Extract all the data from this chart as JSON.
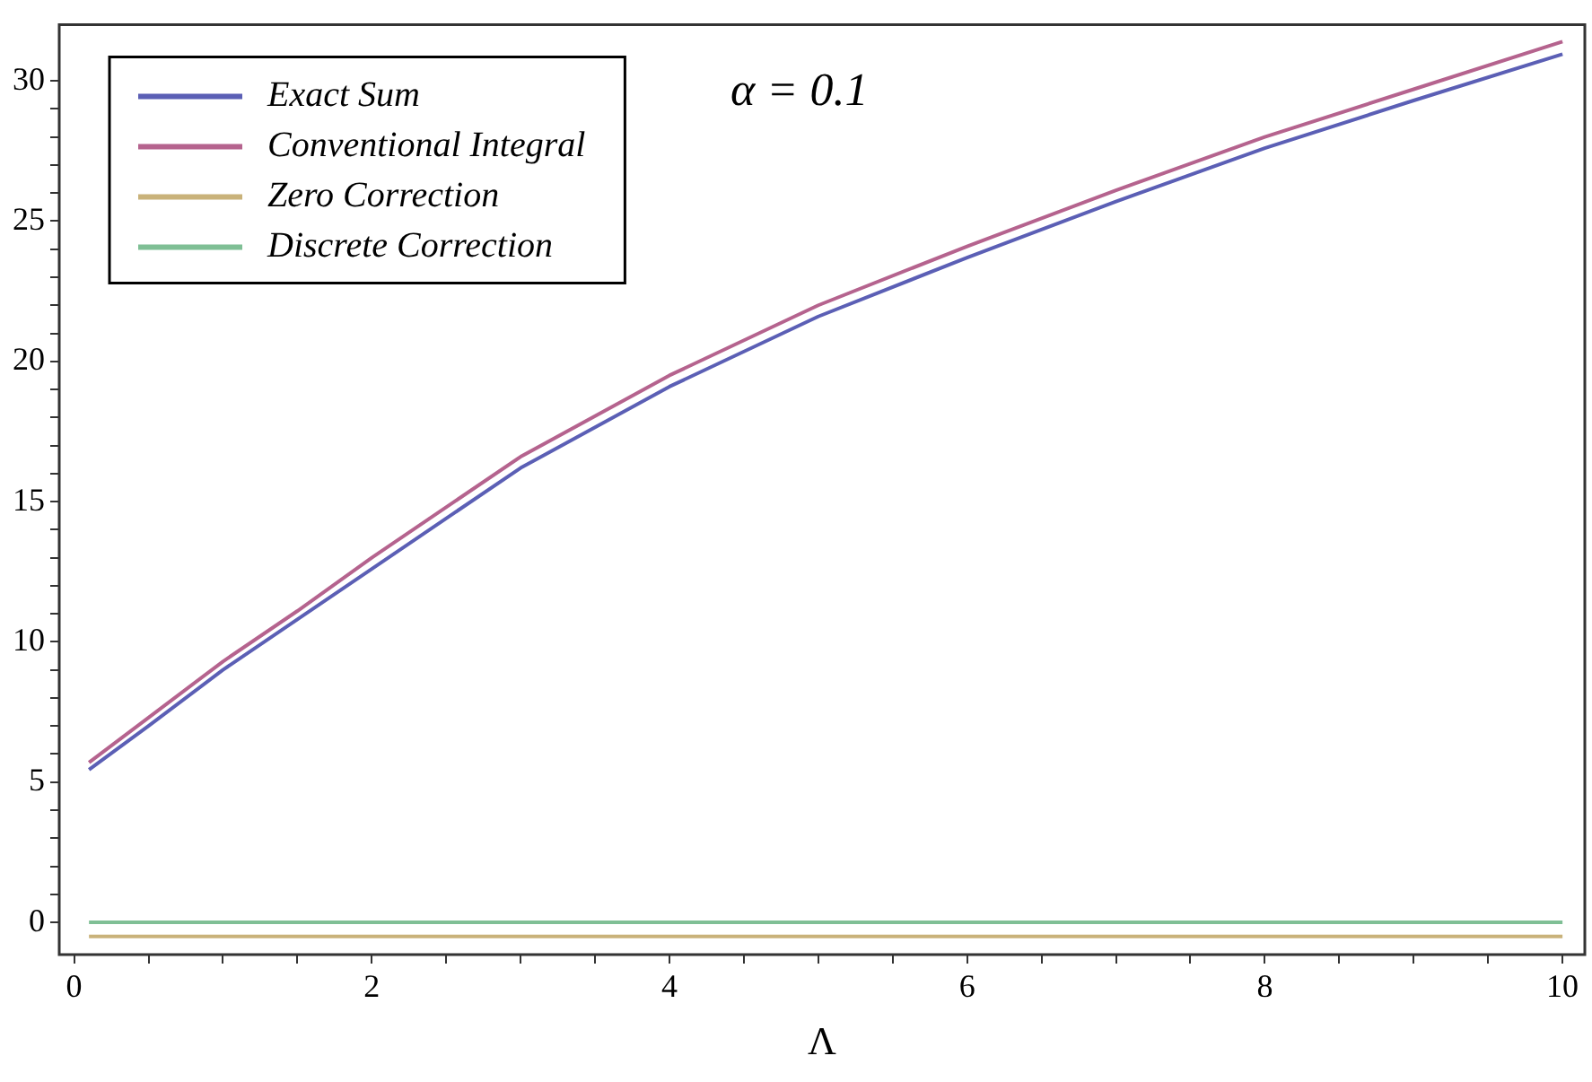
{
  "chart_data": {
    "type": "line",
    "xlabel": "Λ",
    "annotations": [
      {
        "text": "α = 0.1"
      }
    ],
    "x": [
      0.1,
      0.5,
      1,
      1.5,
      2,
      3,
      4,
      5,
      6,
      7,
      8,
      9,
      10
    ],
    "series": [
      {
        "name": "Exact Sum",
        "color": "#5b5fb5",
        "values": [
          5.44,
          7.0,
          9.0,
          10.8,
          12.6,
          16.2,
          19.1,
          21.6,
          23.7,
          25.7,
          27.6,
          29.3,
          30.95
        ]
      },
      {
        "name": "Conventional Integral",
        "color": "#b5638e",
        "values": [
          5.7,
          7.3,
          9.3,
          11.1,
          13.0,
          16.6,
          19.5,
          22.0,
          24.1,
          26.1,
          28.0,
          29.7,
          31.4
        ]
      },
      {
        "name": "Zero Correction",
        "color": "#c9b27a",
        "values": [
          -0.5,
          -0.5,
          -0.5,
          -0.5,
          -0.5,
          -0.5,
          -0.5,
          -0.5,
          -0.5,
          -0.5,
          -0.5,
          -0.5,
          -0.5
        ]
      },
      {
        "name": "Discrete Correction",
        "color": "#7fbf95",
        "values": [
          0,
          0,
          0,
          0,
          0,
          0,
          0,
          0,
          0,
          0,
          0,
          0,
          0
        ]
      }
    ],
    "xlim": [
      -0.1,
      10.15
    ],
    "ylim": [
      -1.15,
      32
    ],
    "xticks": [
      0,
      {
        "value": 0.5,
        "label": null
      },
      {
        "value": 1,
        "label": null
      },
      {
        "value": 1.5,
        "label": null
      },
      2,
      {
        "value": 2.5,
        "label": null
      },
      {
        "value": 3,
        "label": null
      },
      {
        "value": 3.5,
        "label": null
      },
      4,
      {
        "value": 4.5,
        "label": null
      },
      {
        "value": 5,
        "label": null
      },
      {
        "value": 5.5,
        "label": null
      },
      6,
      {
        "value": 6.5,
        "label": null
      },
      {
        "value": 7,
        "label": null
      },
      {
        "value": 7.5,
        "label": null
      },
      8,
      {
        "value": 8.5,
        "label": null
      },
      {
        "value": 9,
        "label": null
      },
      {
        "value": 9.5,
        "label": null
      },
      10
    ],
    "yticks": [
      0,
      {
        "value": 1,
        "label": null
      },
      {
        "value": 2,
        "label": null
      },
      {
        "value": 3,
        "label": null
      },
      {
        "value": 4,
        "label": null
      },
      5,
      {
        "value": 6,
        "label": null
      },
      {
        "value": 7,
        "label": null
      },
      {
        "value": 8,
        "label": null
      },
      {
        "value": 9,
        "label": null
      },
      10,
      {
        "value": 11,
        "label": null
      },
      {
        "value": 12,
        "label": null
      },
      {
        "value": 13,
        "label": null
      },
      {
        "value": 14,
        "label": null
      },
      15,
      {
        "value": 16,
        "label": null
      },
      {
        "value": 17,
        "label": null
      },
      {
        "value": 18,
        "label": null
      },
      {
        "value": 19,
        "label": null
      },
      20,
      {
        "value": 21,
        "label": null
      },
      {
        "value": 22,
        "label": null
      },
      {
        "value": 23,
        "label": null
      },
      {
        "value": 24,
        "label": null
      },
      25,
      {
        "value": 26,
        "label": null
      },
      {
        "value": 27,
        "label": null
      },
      {
        "value": 28,
        "label": null
      },
      {
        "value": 29,
        "label": null
      },
      30
    ],
    "grid": false,
    "legend": "top left",
    "marker": "none",
    "line_style": "solid"
  }
}
